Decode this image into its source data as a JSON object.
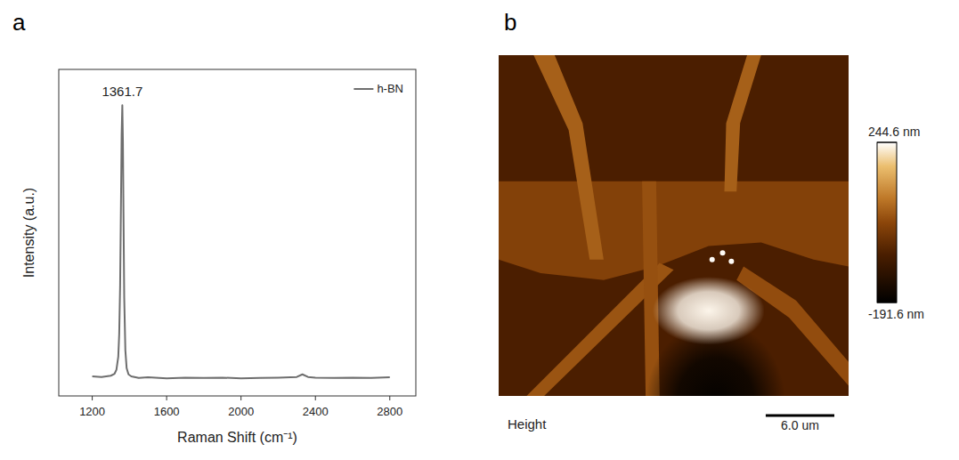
{
  "chart_data": [
    {
      "type": "line",
      "panel_label": "a",
      "x_label": "Raman Shift (cm⁻¹)",
      "y_label": "Intensity (a.u.)",
      "xlim": [
        1020,
        2940
      ],
      "xticks": [
        1200,
        1600,
        2000,
        2400,
        2800
      ],
      "ylim": [
        0,
        1
      ],
      "tick_labels": "x",
      "legend": "upper right",
      "series": [
        {
          "name": "h-BN",
          "color": "#6e6e6e",
          "x": [
            1200,
            1250,
            1300,
            1320,
            1330,
            1340,
            1345,
            1350,
            1355,
            1358,
            1361.7,
            1365,
            1368,
            1372,
            1378,
            1385,
            1395,
            1410,
            1450,
            1500,
            1600,
            1700,
            1800,
            1900,
            2000,
            2100,
            2200,
            2300,
            2330,
            2360,
            2400,
            2500,
            2600,
            2700,
            2800
          ],
          "values": [
            0.06,
            0.058,
            0.062,
            0.068,
            0.08,
            0.12,
            0.19,
            0.34,
            0.62,
            0.8,
            0.89,
            0.78,
            0.56,
            0.3,
            0.14,
            0.085,
            0.066,
            0.06,
            0.055,
            0.057,
            0.054,
            0.056,
            0.055,
            0.056,
            0.054,
            0.055,
            0.056,
            0.058,
            0.066,
            0.058,
            0.056,
            0.055,
            0.056,
            0.055,
            0.057
          ]
        }
      ],
      "annotations": [
        {
          "x": 1361.7,
          "label": "1361.7"
        }
      ]
    },
    {
      "type": "heatmap",
      "panel_label": "b",
      "label": "Height",
      "colorbar_range": [
        -191.6,
        244.6
      ],
      "colorbar_ticks": [
        {
          "value": 244.6,
          "label": "244.6 nm"
        },
        {
          "value": -191.6,
          "label": "-191.6 nm"
        }
      ],
      "scale_bar": {
        "value": 6.0,
        "label": "6.0 um"
      },
      "image_width_um": 30.6,
      "regions": [
        {
          "height": -60
        },
        {
          "height": 15
        },
        {
          "height": 60
        },
        {
          "height": 60
        },
        {
          "height": 45
        },
        {
          "height": 35
        },
        {
          "height": 40
        },
        {
          "height": -185
        },
        {
          "height": 235
        },
        {
          "height": 240
        }
      ]
    }
  ]
}
